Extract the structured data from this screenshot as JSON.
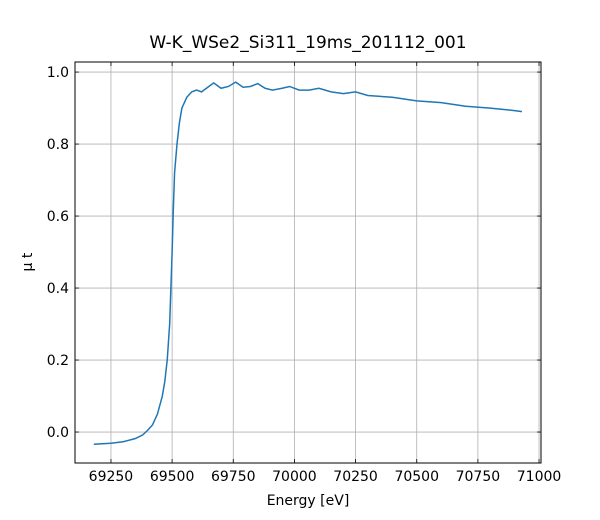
{
  "chart_data": {
    "type": "line",
    "title": "W-K_WSe2_Si311_19ms_201112_001",
    "xlabel": "Energy [eV]",
    "ylabel": "μ t",
    "x": [
      69180,
      69250,
      69300,
      69350,
      69380,
      69400,
      69420,
      69440,
      69460,
      69470,
      69480,
      69490,
      69495,
      69500,
      69505,
      69510,
      69520,
      69530,
      69540,
      69560,
      69580,
      69600,
      69620,
      69650,
      69670,
      69700,
      69730,
      69760,
      69790,
      69820,
      69850,
      69880,
      69910,
      69950,
      69980,
      70020,
      70060,
      70100,
      70150,
      70200,
      70250,
      70300,
      70400,
      70500,
      70600,
      70700,
      70800,
      70900,
      70930
    ],
    "series": [
      {
        "color": "#1f77b4",
        "values": [
          -0.034,
          -0.031,
          -0.027,
          -0.018,
          -0.008,
          0.005,
          0.02,
          0.05,
          0.1,
          0.14,
          0.2,
          0.3,
          0.4,
          0.5,
          0.62,
          0.72,
          0.8,
          0.86,
          0.9,
          0.93,
          0.945,
          0.95,
          0.945,
          0.96,
          0.97,
          0.955,
          0.96,
          0.972,
          0.958,
          0.96,
          0.968,
          0.955,
          0.95,
          0.955,
          0.96,
          0.95,
          0.95,
          0.955,
          0.945,
          0.94,
          0.945,
          0.935,
          0.93,
          0.92,
          0.915,
          0.905,
          0.9,
          0.893,
          0.89
        ]
      }
    ],
    "xlim": [
      69103,
      71008
    ],
    "ylim": [
      -0.086,
      1.028
    ],
    "xticks": [
      69250,
      69500,
      69750,
      70000,
      70250,
      70500,
      70750,
      71000
    ],
    "yticks": [
      {
        "value": 0,
        "label": "0.0"
      },
      0.2,
      0.4,
      0.6,
      0.8,
      {
        "value": 1,
        "label": "1.0"
      }
    ],
    "grid": true
  }
}
